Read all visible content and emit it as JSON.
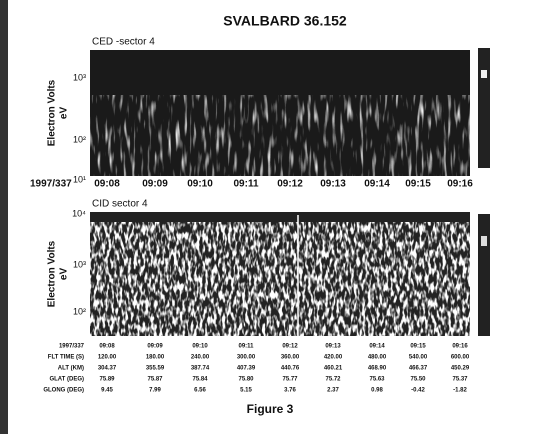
{
  "title": "SVALBARD 36.152",
  "panels": [
    {
      "label": "CED -sector 4",
      "ylabel": [
        "Electron Volts",
        "eV"
      ],
      "yticks": [
        "10³",
        "10²",
        "10¹"
      ],
      "xlabel_prefix": "1997/337",
      "xticks": [
        "09:08",
        "09:09",
        "09:10",
        "09:11",
        "09:12",
        "09:13",
        "09:14",
        "09:15",
        "09:16"
      ]
    },
    {
      "label": "CID sector 4",
      "ylabel": [
        "Electron Volts",
        "eV"
      ],
      "yticks": [
        "10⁴",
        "10³",
        "10²"
      ]
    }
  ],
  "table": {
    "rows": [
      [
        "1997/337",
        "09:08",
        "09:09",
        "09:10",
        "09:11",
        "09:12",
        "09:13",
        "09:14",
        "09:15",
        "09:16"
      ],
      [
        "FLT TIME (S)",
        "120.00",
        "180.00",
        "240.00",
        "300.00",
        "360.00",
        "420.00",
        "480.00",
        "540.00",
        "600.00"
      ],
      [
        "ALT (KM)",
        "304.37",
        "355.59",
        "387.74",
        "407.39",
        "440.76",
        "460.21",
        "468.90",
        "466.37",
        "450.29"
      ],
      [
        "GLAT (DEG)",
        "75.89",
        "75.87",
        "75.84",
        "75.80",
        "75.77",
        "75.72",
        "75.63",
        "75.50",
        "75.37"
      ],
      [
        "GLONG (DEG)",
        "9.45",
        "7.99",
        "6.56",
        "5.15",
        "3.76",
        "2.37",
        "0.98",
        "-0.42",
        "-1.82"
      ]
    ]
  },
  "caption": "Figure 3"
}
